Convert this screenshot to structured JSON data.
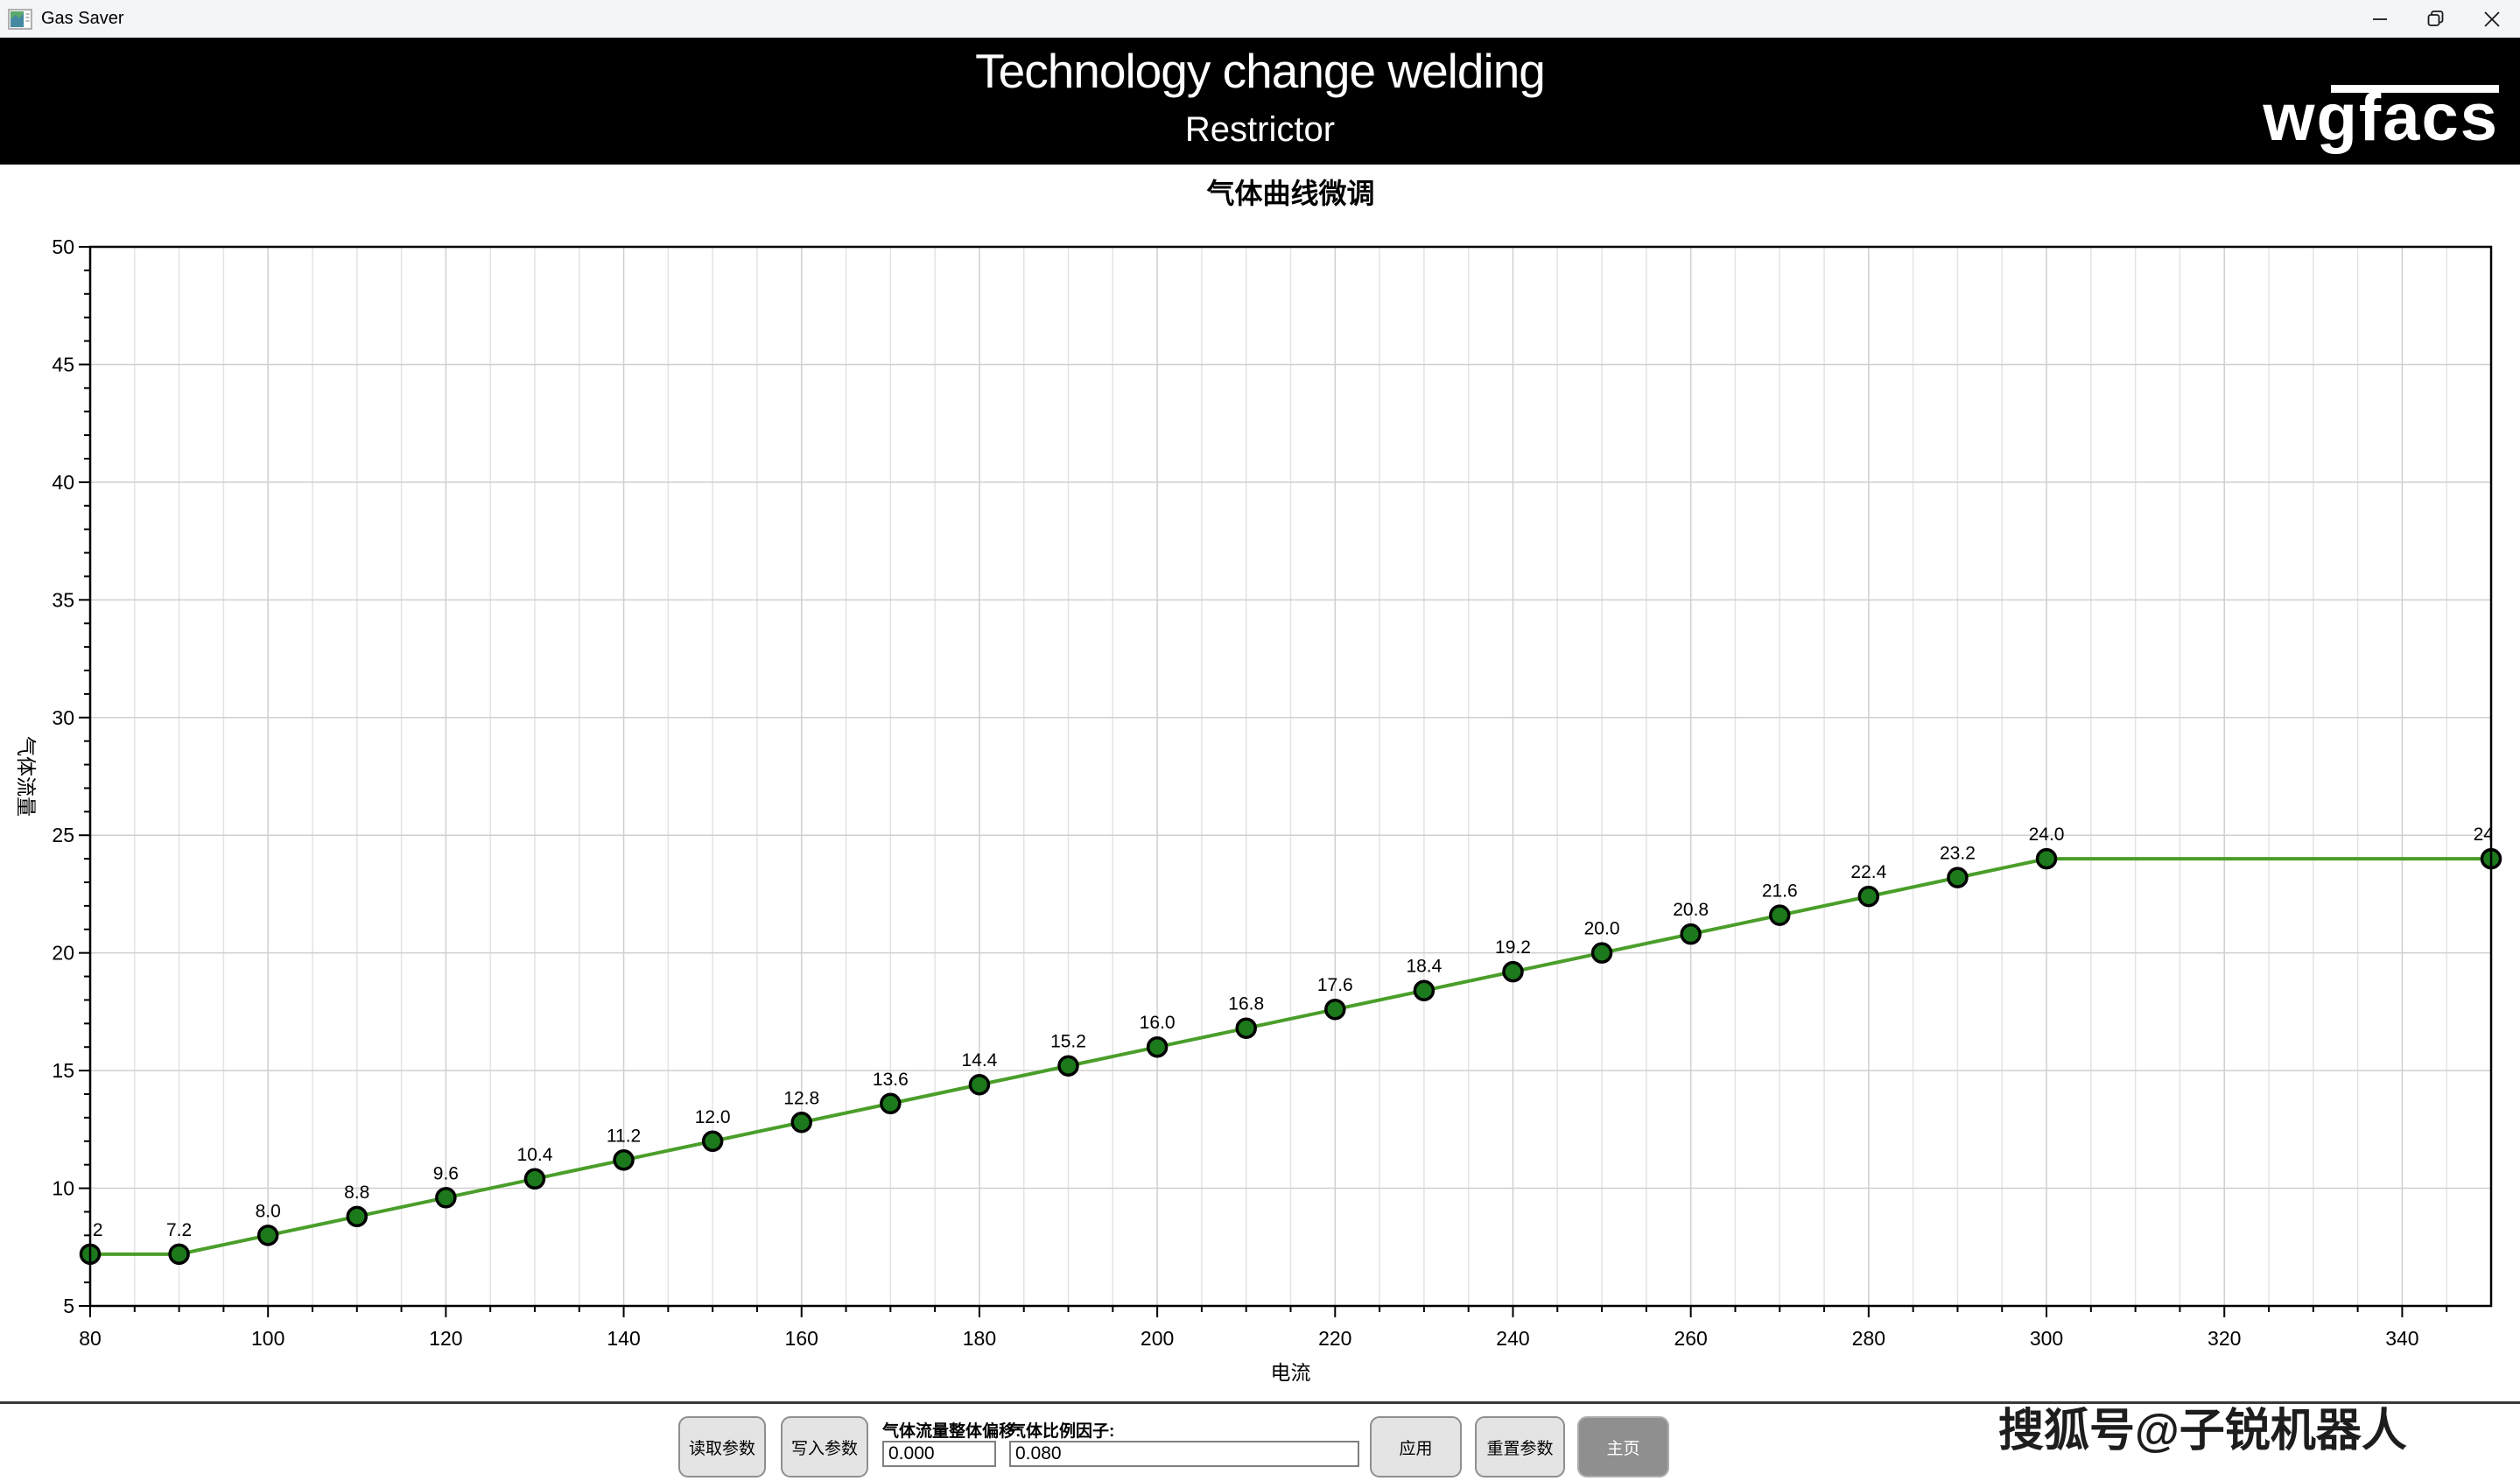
{
  "window": {
    "title": "Gas Saver",
    "icons": {
      "app_icon": "chart-window",
      "minimize": "minus-glyph",
      "restore": "overlapping-squares",
      "close": "x-glyph"
    }
  },
  "header": {
    "title": "Technology change welding",
    "subtitle": "Restrictor",
    "logo_text": "wgfacs"
  },
  "chart_data": {
    "type": "line",
    "title": "气体曲线微调",
    "xlabel": "电流",
    "ylabel": "气体流量",
    "x": [
      80,
      90,
      100,
      110,
      120,
      130,
      140,
      150,
      160,
      170,
      180,
      190,
      200,
      210,
      220,
      230,
      240,
      250,
      260,
      270,
      280,
      290,
      300,
      350
    ],
    "y": [
      7.2,
      7.2,
      8.0,
      8.8,
      9.6,
      10.4,
      11.2,
      12.0,
      12.8,
      13.6,
      14.4,
      15.2,
      16.0,
      16.8,
      17.6,
      18.4,
      19.2,
      20.0,
      20.8,
      21.6,
      22.4,
      23.2,
      24.0,
      24.0
    ],
    "xlim": [
      80,
      350
    ],
    "ylim": [
      5,
      50
    ],
    "x_major_step": 20,
    "x_minor_step": 5,
    "y_major_step": 5,
    "y_minor_step": 1,
    "grid": true,
    "legend": "none",
    "point_labels_decimals": 1,
    "line_color": "#4a9e2a",
    "marker_fill": "#1c791c",
    "marker_stroke": "#000000",
    "grid_major_color": "#cfcfcf",
    "grid_minor_color": "#e3e3e3"
  },
  "toolbar": {
    "read_button": "读取参数",
    "write_button": "写入参数",
    "offset_label": "气体流量整体偏移:",
    "offset_value": "0.000",
    "factor_label": "气体比例因子:",
    "factor_value": "0.080",
    "apply_button": "应用",
    "reset_button": "重置参数",
    "home_button": "主页"
  },
  "watermark": "搜狐号@子锐机器人"
}
